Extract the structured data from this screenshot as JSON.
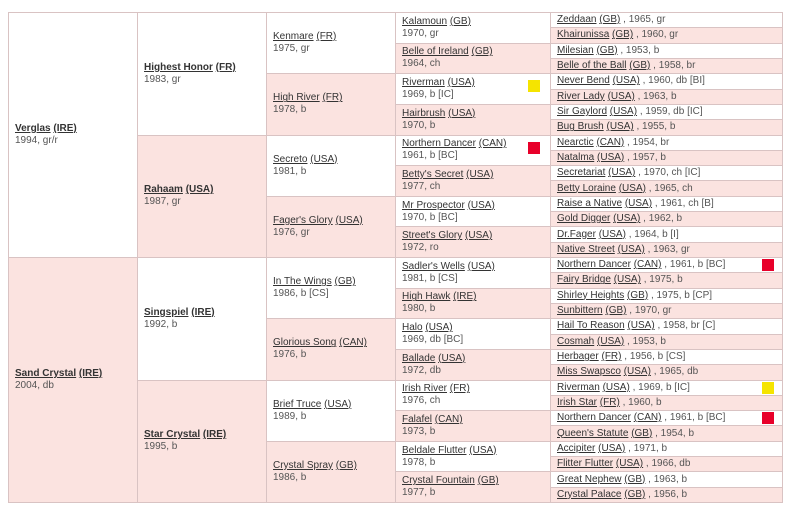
{
  "colors": {
    "pink_cell": "#fbe3e0",
    "border": "#d9c3c3",
    "marker_yellow": "#f5e400",
    "marker_red": "#e8002a"
  },
  "pedigree": {
    "g1": [
      {
        "name": "Verglas",
        "country": "(IRE)",
        "info": "1994, gr/r"
      },
      {
        "name": "Sand Crystal",
        "country": "(IRE)",
        "info": "2004, db"
      }
    ],
    "g2": [
      {
        "name": "Highest Honor",
        "country": "(FR)",
        "info": "1983, gr"
      },
      {
        "name": "Rahaam",
        "country": "(USA)",
        "info": "1987, gr"
      },
      {
        "name": "Singspiel",
        "country": "(IRE)",
        "info": "1992, b"
      },
      {
        "name": "Star Crystal",
        "country": "(IRE)",
        "info": "1995, b"
      }
    ],
    "g3": [
      {
        "name": "Kenmare",
        "country": "(FR)",
        "info": "1975, gr"
      },
      {
        "name": "High River",
        "country": "(FR)",
        "info": "1978, b"
      },
      {
        "name": "Secreto",
        "country": "(USA)",
        "info": "1981, b"
      },
      {
        "name": "Fager's Glory",
        "country": "(USA)",
        "info": "1976, gr"
      },
      {
        "name": "In The Wings",
        "country": "(GB)",
        "info": "1986, b [CS]"
      },
      {
        "name": "Glorious Song",
        "country": "(CAN)",
        "info": "1976, b"
      },
      {
        "name": "Brief Truce",
        "country": "(USA)",
        "info": "1989, b"
      },
      {
        "name": "Crystal Spray",
        "country": "(GB)",
        "info": "1986, b"
      }
    ],
    "g4": [
      {
        "name": "Kalamoun",
        "country": "(GB)",
        "info": "1970, gr"
      },
      {
        "name": "Belle of Ireland",
        "country": "(GB)",
        "info": "1964, ch"
      },
      {
        "name": "Riverman",
        "country": "(USA)",
        "info": "1969, b [IC]",
        "marker": "yellow"
      },
      {
        "name": "Hairbrush",
        "country": "(USA)",
        "info": "1970, b"
      },
      {
        "name": "Northern Dancer",
        "country": "(CAN)",
        "info": "1961, b [BC]",
        "marker": "red"
      },
      {
        "name": "Betty's Secret",
        "country": "(USA)",
        "info": "1977, ch"
      },
      {
        "name": "Mr Prospector",
        "country": "(USA)",
        "info": "1970, b [BC]"
      },
      {
        "name": "Street's Glory",
        "country": "(USA)",
        "info": "1972, ro"
      },
      {
        "name": "Sadler's Wells",
        "country": "(USA)",
        "info": "1981, b [CS]"
      },
      {
        "name": "High Hawk",
        "country": "(IRE)",
        "info": "1980, b"
      },
      {
        "name": "Halo",
        "country": "(USA)",
        "info": "1969, db [BC]"
      },
      {
        "name": "Ballade",
        "country": "(USA)",
        "info": "1972, db"
      },
      {
        "name": "Irish River",
        "country": "(FR)",
        "info": "1976, ch"
      },
      {
        "name": "Falafel",
        "country": "(CAN)",
        "info": "1973, b"
      },
      {
        "name": "Beldale Flutter",
        "country": "(USA)",
        "info": "1978, b"
      },
      {
        "name": "Crystal Fountain",
        "country": "(GB)",
        "info": "1977, b"
      }
    ],
    "g5": [
      {
        "name": "Zeddaan",
        "country": "(GB)",
        "info": ", 1965, gr"
      },
      {
        "name": "Khairunissa",
        "country": "(GB)",
        "info": ", 1960, gr"
      },
      {
        "name": "Milesian",
        "country": "(GB)",
        "info": ", 1953, b"
      },
      {
        "name": "Belle of the Ball",
        "country": "(GB)",
        "info": ", 1958, br"
      },
      {
        "name": "Never Bend",
        "country": "(USA)",
        "info": ", 1960, db [BI]"
      },
      {
        "name": "River Lady",
        "country": "(USA)",
        "info": ", 1963, b"
      },
      {
        "name": "Sir Gaylord",
        "country": "(USA)",
        "info": ", 1959, db [IC]"
      },
      {
        "name": "Bug Brush",
        "country": "(USA)",
        "info": ", 1955, b"
      },
      {
        "name": "Nearctic",
        "country": "(CAN)",
        "info": ", 1954, br"
      },
      {
        "name": "Natalma",
        "country": "(USA)",
        "info": ", 1957, b"
      },
      {
        "name": "Secretariat",
        "country": "(USA)",
        "info": ", 1970, ch [IC]"
      },
      {
        "name": "Betty Loraine",
        "country": "(USA)",
        "info": ", 1965, ch"
      },
      {
        "name": "Raise a Native",
        "country": "(USA)",
        "info": ", 1961, ch [B]"
      },
      {
        "name": "Gold Digger",
        "country": "(USA)",
        "info": ", 1962, b"
      },
      {
        "name": "Dr.Fager",
        "country": "(USA)",
        "info": ", 1964, b [I]"
      },
      {
        "name": "Native Street",
        "country": "(USA)",
        "info": ", 1963, gr"
      },
      {
        "name": "Northern Dancer",
        "country": "(CAN)",
        "info": ", 1961, b [BC]",
        "marker": "red"
      },
      {
        "name": "Fairy Bridge",
        "country": "(USA)",
        "info": ", 1975, b"
      },
      {
        "name": "Shirley Heights",
        "country": "(GB)",
        "info": ", 1975, b [CP]"
      },
      {
        "name": "Sunbittern",
        "country": "(GB)",
        "info": ", 1970, gr"
      },
      {
        "name": "Hail To Reason",
        "country": "(USA)",
        "info": ", 1958, br [C]"
      },
      {
        "name": "Cosmah",
        "country": "(USA)",
        "info": ", 1953, b"
      },
      {
        "name": "Herbager",
        "country": "(FR)",
        "info": ", 1956, b [CS]"
      },
      {
        "name": "Miss Swapsco",
        "country": "(USA)",
        "info": ", 1965, db"
      },
      {
        "name": "Riverman",
        "country": "(USA)",
        "info": ", 1969, b [IC]",
        "marker": "yellow"
      },
      {
        "name": "Irish Star",
        "country": "(FR)",
        "info": ", 1960, b"
      },
      {
        "name": "Northern Dancer",
        "country": "(CAN)",
        "info": ", 1961, b [BC]",
        "marker": "red"
      },
      {
        "name": "Queen's Statute",
        "country": "(GB)",
        "info": ", 1954, b"
      },
      {
        "name": "Accipiter",
        "country": "(USA)",
        "info": ", 1971, b"
      },
      {
        "name": "Flitter Flutter",
        "country": "(USA)",
        "info": ", 1966, db"
      },
      {
        "name": "Great Nephew",
        "country": "(GB)",
        "info": ", 1963, b"
      },
      {
        "name": "Crystal Palace",
        "country": "(GB)",
        "info": ", 1956, b"
      }
    ]
  }
}
